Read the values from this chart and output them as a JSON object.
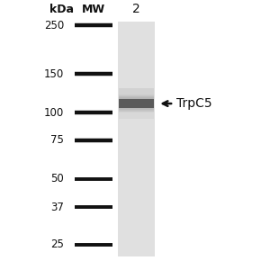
{
  "bg_color": "#ffffff",
  "kda_label": "kDa",
  "mw_label": "MW",
  "lane_label": "2",
  "marker_weights": [
    250,
    150,
    100,
    75,
    50,
    37,
    25
  ],
  "band_protein": "TrpC5",
  "band_kda": 110,
  "font_size_labels": 8.5,
  "font_size_mw": 9,
  "font_size_lane": 10,
  "lane_color": "#e0e0e0",
  "band_color_dark": "#444444",
  "band_color_light": "#888888",
  "marker_line_color": "#111111",
  "text_color": "#111111",
  "arrow_text": "←TrpC5"
}
